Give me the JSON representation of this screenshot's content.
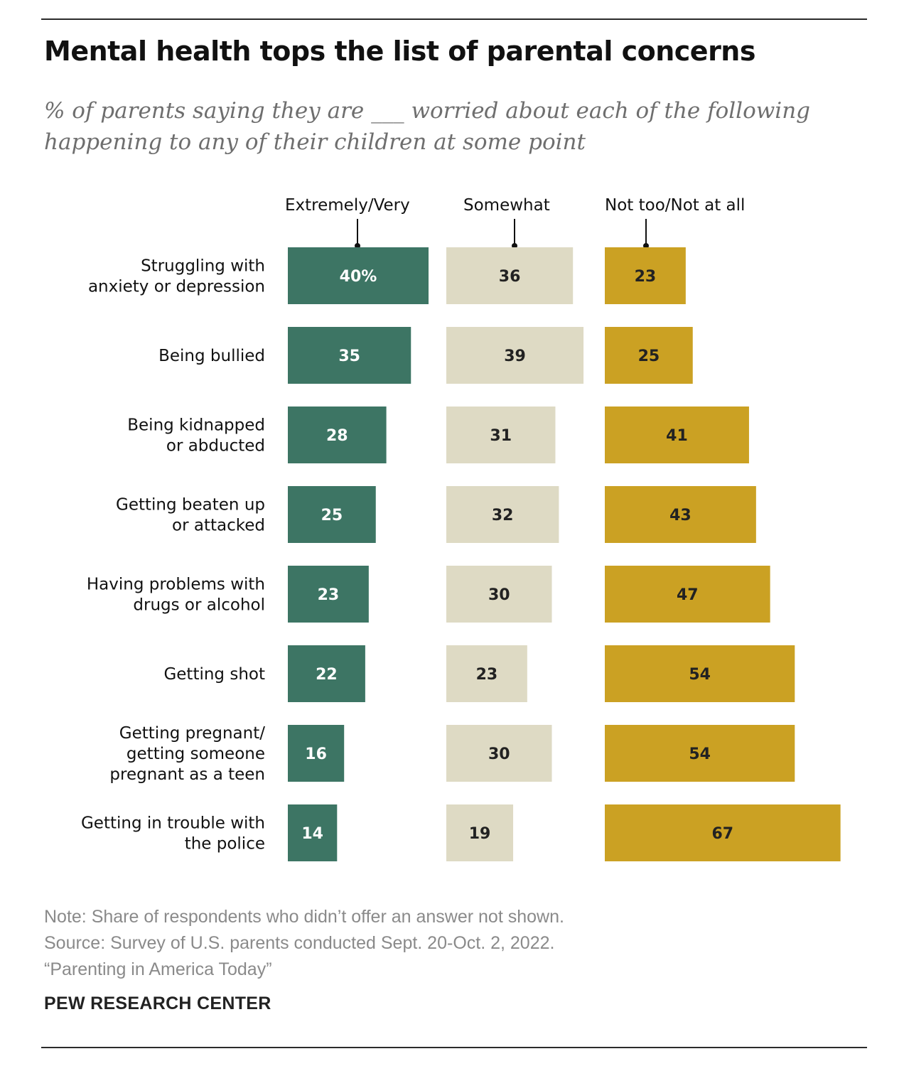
{
  "title": "Mental health tops the list of parental concerns",
  "subtitle": "% of parents saying they are ___ worried about each of the following happening to any of their children at some point",
  "chart_data": {
    "type": "bar",
    "orientation": "horizontal",
    "layout": "three separate bar columns",
    "categories": [
      [
        "Struggling with",
        "anxiety or depression"
      ],
      [
        "Being bullied"
      ],
      [
        "Being kidnapped",
        "or abducted"
      ],
      [
        "Getting beaten up",
        "or attacked"
      ],
      [
        "Having problems with",
        "drugs or alcohol"
      ],
      [
        "Getting shot"
      ],
      [
        "Getting pregnant/",
        "getting someone",
        "pregnant as a teen"
      ],
      [
        "Getting in trouble with",
        "the police"
      ]
    ],
    "series": [
      {
        "name": "Extremely/Very",
        "color": "#3d7564",
        "text_color": "#ffffff",
        "values": [
          40,
          35,
          28,
          25,
          23,
          22,
          16,
          14
        ],
        "labels": [
          "40%",
          "35",
          "28",
          "25",
          "23",
          "22",
          "16",
          "14"
        ]
      },
      {
        "name": "Somewhat",
        "color": "#dedac4",
        "text_color": "#222222",
        "values": [
          36,
          39,
          31,
          32,
          30,
          23,
          30,
          19
        ],
        "labels": [
          "36",
          "39",
          "31",
          "32",
          "30",
          "23",
          "30",
          "19"
        ]
      },
      {
        "name": "Not too/Not at all",
        "color": "#cba123",
        "text_color": "#222222",
        "values": [
          23,
          25,
          41,
          43,
          47,
          54,
          54,
          67
        ],
        "labels": [
          "23",
          "25",
          "41",
          "43",
          "47",
          "54",
          "54",
          "67"
        ]
      }
    ],
    "xlim": [
      0,
      100
    ],
    "grid": false,
    "legend": "column headers above bars"
  },
  "footer": {
    "note": "Note: Share of respondents who didn’t offer an answer not shown.",
    "source": "Source: Survey of U.S. parents conducted Sept. 20-Oct. 2, 2022.",
    "report": "“Parenting in America Today”",
    "brand": "PEW RESEARCH CENTER"
  }
}
